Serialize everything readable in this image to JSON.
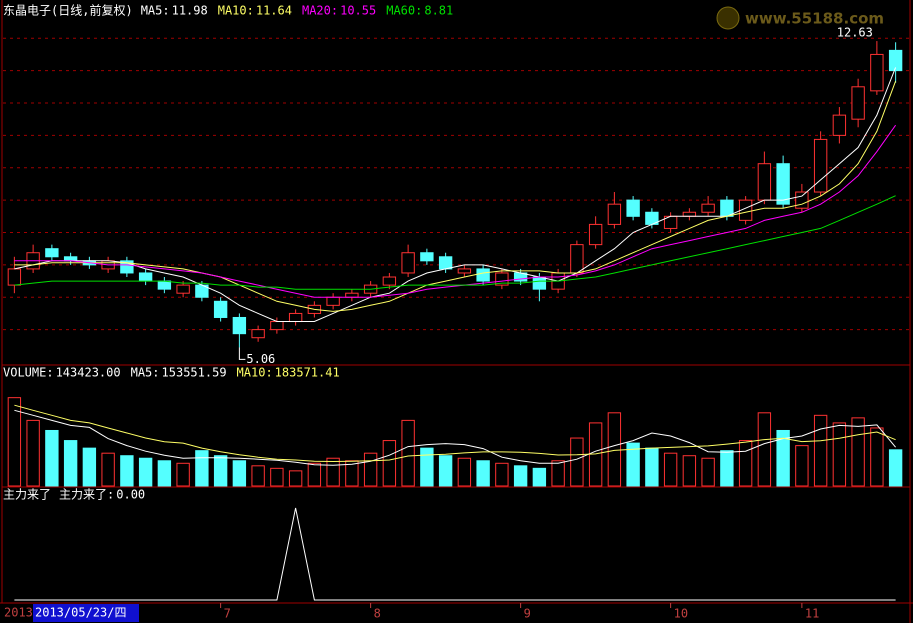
{
  "watermark": "www.55188.com",
  "date_axis": {
    "start": "2013",
    "cursor": "2013/05/23/四"
  },
  "chart_data": [
    {
      "type": "candlestick",
      "title": "东晶电子(日线,前复权)",
      "categories": [
        null,
        null,
        null,
        null,
        null,
        null,
        null,
        null,
        null,
        null,
        null,
        "7",
        null,
        null,
        null,
        null,
        null,
        null,
        null,
        "8",
        null,
        null,
        null,
        null,
        null,
        null,
        null,
        "9",
        null,
        null,
        null,
        null,
        null,
        null,
        null,
        "10",
        null,
        null,
        null,
        null,
        null,
        null,
        "11",
        null,
        null,
        null,
        null,
        null
      ],
      "open": [
        6.6,
        7.0,
        7.5,
        7.3,
        7.2,
        7.0,
        7.2,
        6.9,
        6.7,
        6.4,
        6.6,
        6.2,
        5.8,
        5.3,
        5.5,
        5.7,
        5.9,
        6.1,
        6.3,
        6.4,
        6.6,
        6.9,
        7.4,
        7.3,
        6.9,
        7.0,
        6.6,
        6.9,
        6.8,
        6.5,
        6.9,
        7.6,
        8.1,
        8.7,
        8.4,
        8.0,
        8.3,
        8.4,
        8.7,
        8.2,
        8.7,
        9.6,
        8.5,
        8.9,
        10.3,
        10.7,
        11.4,
        12.4
      ],
      "high": [
        7.3,
        7.6,
        7.6,
        7.4,
        7.3,
        7.3,
        7.3,
        7.0,
        6.8,
        6.7,
        6.7,
        6.3,
        5.9,
        5.6,
        5.8,
        6.0,
        6.2,
        6.4,
        6.5,
        6.7,
        6.9,
        7.6,
        7.5,
        7.4,
        7.1,
        7.1,
        7.0,
        7.0,
        6.9,
        7.0,
        7.7,
        8.3,
        8.9,
        8.8,
        8.5,
        8.4,
        8.5,
        8.8,
        8.8,
        8.8,
        9.9,
        9.8,
        9.1,
        10.4,
        11.0,
        11.7,
        12.63,
        12.6
      ],
      "low": [
        6.4,
        6.9,
        7.2,
        7.1,
        7.0,
        6.9,
        6.8,
        6.6,
        6.4,
        6.3,
        6.2,
        5.7,
        5.06,
        5.2,
        5.4,
        5.6,
        5.8,
        6.0,
        6.2,
        6.3,
        6.5,
        6.8,
        7.1,
        6.9,
        6.8,
        6.6,
        6.5,
        6.6,
        6.2,
        6.4,
        6.8,
        7.5,
        8.0,
        8.2,
        8.0,
        7.9,
        8.2,
        8.3,
        8.2,
        8.1,
        8.6,
        8.5,
        8.4,
        8.8,
        10.1,
        10.5,
        11.3,
        11.6
      ],
      "close": [
        7.0,
        7.4,
        7.3,
        7.2,
        7.1,
        7.2,
        6.9,
        6.7,
        6.5,
        6.6,
        6.3,
        5.8,
        5.4,
        5.5,
        5.7,
        5.9,
        6.1,
        6.3,
        6.4,
        6.6,
        6.8,
        7.4,
        7.2,
        7.0,
        7.0,
        6.7,
        6.9,
        6.7,
        6.5,
        6.9,
        7.6,
        8.1,
        8.6,
        8.3,
        8.1,
        8.3,
        8.4,
        8.6,
        8.3,
        8.7,
        9.6,
        8.6,
        8.9,
        10.2,
        10.8,
        11.5,
        12.3,
        11.9
      ],
      "up_color": "#ff3232",
      "down_color": "#54ffff",
      "series": [
        {
          "name": "MA5:",
          "value_label": "11.98",
          "color": "#ffffff",
          "values": [
            7.0,
            7.1,
            7.2,
            7.2,
            7.2,
            7.2,
            7.15,
            7.0,
            6.9,
            6.8,
            6.6,
            6.4,
            6.1,
            5.9,
            5.7,
            5.7,
            5.7,
            5.9,
            6.1,
            6.3,
            6.4,
            6.7,
            6.9,
            7.0,
            7.1,
            7.1,
            7.0,
            6.9,
            6.8,
            6.7,
            6.9,
            7.2,
            7.5,
            7.9,
            8.1,
            8.3,
            8.3,
            8.3,
            8.3,
            8.5,
            8.7,
            8.7,
            8.8,
            9.2,
            9.6,
            10.0,
            10.8,
            11.98
          ]
        },
        {
          "name": "MA10:",
          "value_label": "11.64",
          "color": "#ffff66",
          "values": [
            7.1,
            7.1,
            7.15,
            7.15,
            7.15,
            7.15,
            7.15,
            7.1,
            7.05,
            7.0,
            6.9,
            6.8,
            6.6,
            6.4,
            6.2,
            6.1,
            6.0,
            5.95,
            6.0,
            6.1,
            6.2,
            6.4,
            6.6,
            6.7,
            6.8,
            6.9,
            6.95,
            6.95,
            6.95,
            6.9,
            6.9,
            7.0,
            7.2,
            7.4,
            7.6,
            7.8,
            8.0,
            8.2,
            8.3,
            8.4,
            8.5,
            8.5,
            8.6,
            8.8,
            9.1,
            9.6,
            10.4,
            11.64
          ]
        },
        {
          "name": "MA20:",
          "value_label": "10.55",
          "color": "#ff00ff",
          "values": [
            7.2,
            7.2,
            7.2,
            7.2,
            7.15,
            7.1,
            7.1,
            7.05,
            7.0,
            6.95,
            6.9,
            6.8,
            6.7,
            6.6,
            6.5,
            6.4,
            6.3,
            6.3,
            6.3,
            6.3,
            6.35,
            6.4,
            6.5,
            6.55,
            6.6,
            6.65,
            6.7,
            6.75,
            6.8,
            6.8,
            6.85,
            6.95,
            7.1,
            7.3,
            7.5,
            7.6,
            7.7,
            7.8,
            7.9,
            8.0,
            8.2,
            8.3,
            8.4,
            8.6,
            8.9,
            9.3,
            9.9,
            10.55
          ]
        },
        {
          "name": "MA60:",
          "value_label": "8.81",
          "color": "#00e000",
          "values": [
            6.6,
            6.65,
            6.7,
            6.7,
            6.7,
            6.7,
            6.7,
            6.7,
            6.7,
            6.65,
            6.65,
            6.6,
            6.6,
            6.55,
            6.55,
            6.5,
            6.5,
            6.5,
            6.5,
            6.5,
            6.55,
            6.6,
            6.6,
            6.6,
            6.6,
            6.6,
            6.65,
            6.65,
            6.7,
            6.7,
            6.75,
            6.8,
            6.9,
            7.0,
            7.1,
            7.2,
            7.3,
            7.4,
            7.5,
            7.6,
            7.7,
            7.8,
            7.9,
            8.0,
            8.2,
            8.4,
            8.6,
            8.81
          ]
        }
      ],
      "ylim": [
        4.7,
        13.2
      ],
      "yticks": [
        5.5,
        6.3,
        7.1,
        7.9,
        8.7,
        9.5,
        10.3,
        11.1,
        11.9,
        12.7
      ],
      "grid": true,
      "annotations": [
        "12.63",
        "5.06"
      ]
    },
    {
      "type": "bar",
      "title": "VOLUME:",
      "value_label": "143423.00",
      "values": [
        350000,
        260000,
        220000,
        180000,
        150000,
        130000,
        120000,
        110000,
        100000,
        90000,
        140000,
        120000,
        100000,
        80000,
        70000,
        60000,
        90000,
        110000,
        100000,
        130000,
        180000,
        260000,
        150000,
        120000,
        110000,
        100000,
        90000,
        80000,
        70000,
        100000,
        190000,
        250000,
        290000,
        170000,
        150000,
        130000,
        120000,
        110000,
        140000,
        180000,
        290000,
        220000,
        160000,
        280000,
        250000,
        270000,
        230000,
        143423
      ],
      "series": [
        {
          "name": "MA5:",
          "value_label": "153551.59",
          "color": "#ffffff",
          "values": [
            300000,
            280000,
            260000,
            240000,
            232000,
            188000,
            160000,
            138000,
            122000,
            110000,
            112000,
            112000,
            110000,
            106000,
            102000,
            94000,
            84000,
            82000,
            86000,
            98000,
            122000,
            156000,
            164000,
            168000,
            164000,
            148000,
            114000,
            100000,
            90000,
            90000,
            106000,
            138000,
            160000,
            180000,
            210000,
            198000,
            172000,
            136000,
            134000,
            138000,
            168000,
            188000,
            198000,
            226000,
            240000,
            236000,
            242000,
            153551.59
          ]
        },
        {
          "name": "MA10:",
          "value_label": "183571.41",
          "color": "#ffff66",
          "values": [
            320000,
            300000,
            280000,
            260000,
            250000,
            230000,
            210000,
            190000,
            175000,
            170000,
            150000,
            136000,
            124000,
            114000,
            106000,
            103000,
            98000,
            97000,
            98000,
            100000,
            103000,
            119000,
            123000,
            126000,
            131000,
            135000,
            135000,
            134000,
            129000,
            123000,
            124000,
            127000,
            141000,
            146000,
            150000,
            153000,
            156000,
            159000,
            166000,
            174000,
            184000,
            189000,
            176000,
            179000,
            189000,
            203000,
            214000,
            183571.41
          ]
        }
      ],
      "ylim": [
        0,
        420000
      ]
    },
    {
      "type": "line",
      "title": "主力来了",
      "series": [
        {
          "name": "主力来了:",
          "value_label": "0.00",
          "color": "#ffffff",
          "values": [
            0,
            0,
            0,
            0,
            0,
            0,
            0,
            0,
            0,
            0,
            0,
            0,
            0,
            0,
            0,
            1,
            0,
            0,
            0,
            0,
            0,
            0,
            0,
            0,
            0,
            0,
            0,
            0,
            0,
            0,
            0,
            0,
            0,
            0,
            0,
            0,
            0,
            0,
            0,
            0,
            0,
            0,
            0,
            0,
            0,
            0,
            0,
            0
          ]
        }
      ],
      "ylim": [
        0,
        1
      ]
    }
  ]
}
